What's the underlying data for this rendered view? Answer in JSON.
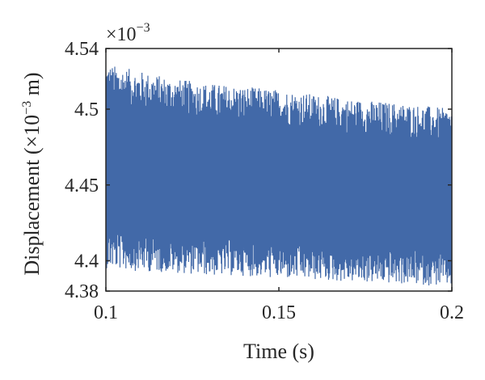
{
  "chart_data": {
    "type": "line",
    "title": "",
    "xlabel": "Time (s)",
    "ylabel": {
      "prefix": "Displacement (×10",
      "exponent": "−3",
      "suffix": " m)"
    },
    "y_exponent": {
      "base": "×10",
      "exponent": "−3"
    },
    "xlim": [
      0.1,
      0.2
    ],
    "ylim": [
      4.38,
      4.54
    ],
    "x_ticks": [
      0.1,
      0.15,
      0.2
    ],
    "x_tick_labels": [
      "0.1",
      "0.15",
      "0.2"
    ],
    "y_ticks": [
      4.38,
      4.4,
      4.45,
      4.5,
      4.54
    ],
    "y_tick_labels": [
      "4.38",
      "4.4",
      "4.45",
      "4.5",
      "4.54"
    ],
    "grid": false,
    "legend": "none",
    "series": [
      {
        "color": "#4269a8",
        "description_envelope": {
          "x": [
            0.1,
            0.11,
            0.12,
            0.13,
            0.14,
            0.15,
            0.16,
            0.17,
            0.18,
            0.19,
            0.2
          ],
          "upper": [
            4.53,
            4.525,
            4.52,
            4.517,
            4.515,
            4.513,
            4.51,
            4.507,
            4.505,
            4.503,
            4.5
          ],
          "lower": [
            4.395,
            4.393,
            4.392,
            4.39,
            4.39,
            4.388,
            4.387,
            4.386,
            4.385,
            4.384,
            4.383
          ]
        }
      }
    ]
  }
}
